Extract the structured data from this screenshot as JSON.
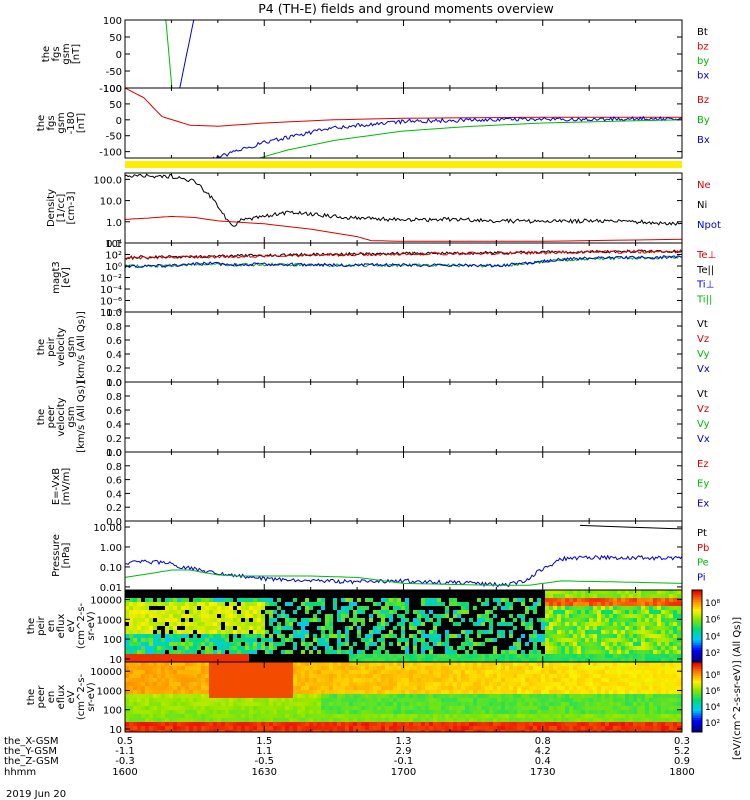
{
  "title": "P4 (TH-E) fields and ground moments overview",
  "date_label": "2019 Jun 20",
  "chart_data": {
    "type": "line",
    "x": {
      "rows": [
        {
          "label": "the_X-GSM",
          "values": [
            "0.5",
            "1.5",
            "1.3",
            "0.8",
            "0.3"
          ]
        },
        {
          "label": "the_Y-GSM",
          "values": [
            "-1.1",
            "1.1",
            "2.9",
            "4.2",
            "5.2"
          ]
        },
        {
          "label": "the_Z-GSM",
          "values": [
            "-0.3",
            "-0.5",
            "-0.1",
            "0.4",
            "0.9"
          ]
        },
        {
          "label": "hhmm",
          "values": [
            "1600",
            "1630",
            "1700",
            "1730",
            "1800"
          ]
        }
      ]
    },
    "panels": [
      {
        "ylabel": [
          "the",
          "fgs",
          "gsm",
          "[nT]"
        ],
        "ticks": [
          "100",
          "50",
          "0",
          "-50",
          "-100"
        ],
        "legend": [
          {
            "name": "Bt",
            "color": "#000000"
          },
          {
            "name": "bz",
            "color": "#dd0000"
          },
          {
            "name": "by",
            "color": "#00bb00"
          },
          {
            "name": "bx",
            "color": "#0000dd"
          }
        ]
      },
      {
        "ylabel": [
          "the",
          "fgs",
          "gsm",
          "-180",
          "[nT]"
        ],
        "ticks": [
          "100",
          "50",
          "0",
          "-50",
          "-100"
        ],
        "legend": [
          {
            "name": "Bz",
            "color": "#dd0000"
          },
          {
            "name": "By",
            "color": "#00bb00"
          },
          {
            "name": "Bx",
            "color": "#0000dd"
          }
        ]
      },
      {
        "ylabel": [
          "Density",
          "[1/cc]",
          "[cm-3]"
        ],
        "ticks": [
          "100.0",
          "10.0",
          "1.0",
          "0.1"
        ],
        "legend": [
          {
            "name": "Ne",
            "color": "#dd0000"
          },
          {
            "name": "Ni",
            "color": "#000000"
          },
          {
            "name": "Npot",
            "color": "#0000dd"
          }
        ]
      },
      {
        "ylabel": [
          "magt3",
          "[eV]"
        ],
        "ticks": [
          "10⁴",
          "10²",
          "10⁰",
          "10⁻²",
          "10⁻⁴",
          "10⁻⁶",
          "10⁻⁸"
        ],
        "legend": [
          {
            "name": "Te⊥",
            "color": "#dd0000"
          },
          {
            "name": "Te||",
            "color": "#000000"
          },
          {
            "name": "Ti⊥",
            "color": "#0000dd"
          },
          {
            "name": "Ti||",
            "color": "#00bb00"
          }
        ]
      },
      {
        "ylabel": [
          "the",
          "peir",
          "velocity",
          "gsm",
          "[km/s (All Qs)]"
        ],
        "ticks": [
          "1.0",
          "0.8",
          "0.6",
          "0.4",
          "0.2",
          "0.0"
        ],
        "legend": [
          {
            "name": "Vt",
            "color": "#000000"
          },
          {
            "name": "Vz",
            "color": "#dd0000"
          },
          {
            "name": "Vy",
            "color": "#00bb00"
          },
          {
            "name": "Vx",
            "color": "#0000dd"
          }
        ]
      },
      {
        "ylabel": [
          "the",
          "peer",
          "velocity",
          "gsm",
          "[km/s (All Qs)]"
        ],
        "ticks": [
          "1.0",
          "0.8",
          "0.6",
          "0.4",
          "0.2",
          "0.0"
        ],
        "legend": [
          {
            "name": "Vt",
            "color": "#000000"
          },
          {
            "name": "Vz",
            "color": "#dd0000"
          },
          {
            "name": "Vy",
            "color": "#00bb00"
          },
          {
            "name": "Vx",
            "color": "#0000dd"
          }
        ]
      },
      {
        "ylabel": [
          "E=-VxB",
          "[mV/m]"
        ],
        "ticks": [
          "1.0",
          "0.8",
          "0.6",
          "0.4",
          "0.2",
          "0.0"
        ],
        "legend": [
          {
            "name": "Ez",
            "color": "#dd0000"
          },
          {
            "name": "Ey",
            "color": "#00bb00"
          },
          {
            "name": "Ex",
            "color": "#0000dd"
          }
        ]
      },
      {
        "ylabel": [
          "Pressure",
          "[nPa]"
        ],
        "ticks": [
          "10.00",
          "1.00",
          "0.10",
          "0.01"
        ],
        "legend": [
          {
            "name": "Pt",
            "color": "#000000"
          },
          {
            "name": "Pb",
            "color": "#dd0000"
          },
          {
            "name": "Pe",
            "color": "#00bb00"
          },
          {
            "name": "Pi",
            "color": "#0000dd"
          }
        ]
      },
      {
        "ylabel": [
          "the",
          "peir",
          "en",
          "eflux",
          "eV",
          "(cm^2-s-",
          "sr-eV)"
        ],
        "ticks": [
          "10000",
          "1000",
          "100",
          "10"
        ]
      },
      {
        "ylabel": [
          "the",
          "peer",
          "en",
          "eflux",
          "eV",
          "(cm^2-s-",
          "sr-eV)"
        ],
        "ticks": [
          "10000",
          "1000",
          "100",
          "10"
        ]
      }
    ],
    "colorbars": [
      {
        "ticks": [
          "10⁸",
          "10⁶",
          "10⁴",
          "10²"
        ]
      },
      {
        "ticks": [
          "10⁸",
          "10⁶",
          "10⁴",
          "10²"
        ]
      }
    ],
    "colorbar_label": "[eV/(cm^2-s-sr-eV)] (All Qs)]",
    "series": [
      {
        "panel": 0,
        "name": "by",
        "color": "#00bb00",
        "values": [
          [
            1608.8,
            100
          ],
          [
            1610.1,
            -100
          ]
        ]
      },
      {
        "panel": 0,
        "name": "bx",
        "color": "#0000dd",
        "values": [
          [
            1611.8,
            -100
          ],
          [
            1614.8,
            100
          ]
        ]
      },
      {
        "panel": 1,
        "name": "Bz",
        "color": "#dd0000",
        "values": [
          [
            1600,
            100
          ],
          [
            1604,
            70
          ],
          [
            1608,
            10
          ],
          [
            1614,
            -17
          ],
          [
            1620,
            -20
          ],
          [
            1630,
            -10
          ],
          [
            1645,
            0
          ],
          [
            1700,
            5
          ],
          [
            1730,
            8
          ],
          [
            1800,
            8
          ]
        ]
      },
      {
        "panel": 1,
        "name": "Bx",
        "color": "#0000dd",
        "values": [
          [
            1619,
            -120
          ],
          [
            1622,
            -110
          ],
          [
            1630,
            -70
          ],
          [
            1645,
            -25
          ],
          [
            1700,
            -5
          ],
          [
            1715,
            0
          ],
          [
            1730,
            2
          ],
          [
            1800,
            4
          ]
        ]
      },
      {
        "panel": 1,
        "name": "By",
        "color": "#00bb00",
        "values": [
          [
            1629,
            -120
          ],
          [
            1635,
            -95
          ],
          [
            1645,
            -65
          ],
          [
            1700,
            -35
          ],
          [
            1715,
            -20
          ],
          [
            1730,
            -10
          ],
          [
            1750,
            -3
          ],
          [
            1800,
            0
          ]
        ]
      },
      {
        "panel": 2,
        "name": "Ni",
        "color": "#000000",
        "values": [
          [
            1600,
            150
          ],
          [
            1610,
            140
          ],
          [
            1615,
            80
          ],
          [
            1618,
            20
          ],
          [
            1621,
            3
          ],
          [
            1622,
            1.2
          ],
          [
            1623,
            0.6
          ],
          [
            1625,
            1.2
          ],
          [
            1630,
            1.8
          ],
          [
            1635,
            2.8
          ],
          [
            1640,
            2.2
          ],
          [
            1650,
            1.5
          ],
          [
            1700,
            1.2
          ],
          [
            1710,
            1.3
          ],
          [
            1720,
            1.1
          ],
          [
            1730,
            1.05
          ],
          [
            1740,
            1.1
          ],
          [
            1750,
            1.0
          ],
          [
            1800,
            0.8
          ]
        ]
      },
      {
        "panel": 2,
        "name": "Ne",
        "color": "#dd0000",
        "values": [
          [
            1600,
            1.3
          ],
          [
            1605,
            1.5
          ],
          [
            1610,
            1.8
          ],
          [
            1615,
            1.6
          ],
          [
            1620,
            1.1
          ],
          [
            1630,
            0.8
          ],
          [
            1640,
            0.45
          ],
          [
            1650,
            0.2
          ],
          [
            1653,
            0.13
          ],
          [
            1700,
            0.12
          ],
          [
            1730,
            0.12
          ],
          [
            1800,
            0.15
          ]
        ]
      },
      {
        "panel": 3,
        "name": "Te||",
        "color": "#000000",
        "values": [
          [
            1600,
            30
          ],
          [
            1620,
            50
          ],
          [
            1640,
            100
          ],
          [
            1700,
            150
          ],
          [
            1720,
            200
          ],
          [
            1740,
            300
          ],
          [
            1800,
            400
          ]
        ]
      },
      {
        "panel": 3,
        "name": "Te⊥",
        "color": "#dd0000",
        "values": [
          [
            1600,
            25
          ],
          [
            1620,
            40
          ],
          [
            1640,
            80
          ],
          [
            1700,
            130
          ],
          [
            1720,
            170
          ],
          [
            1740,
            250
          ],
          [
            1800,
            350
          ]
        ]
      },
      {
        "panel": 3,
        "name": "Ti||",
        "color": "#00bb00",
        "values": [
          [
            1600,
            1.0
          ],
          [
            1610,
            1.2
          ],
          [
            1618,
            2.5
          ],
          [
            1622,
            1.5
          ],
          [
            1630,
            1.8
          ],
          [
            1640,
            1.5
          ],
          [
            1650,
            1.3
          ],
          [
            1700,
            1.4
          ],
          [
            1720,
            1.2
          ],
          [
            1725,
            2.0
          ],
          [
            1733,
            10
          ],
          [
            1740,
            20
          ],
          [
            1800,
            30
          ]
        ]
      },
      {
        "panel": 3,
        "name": "Ti⊥",
        "color": "#0000dd",
        "values": [
          [
            1600,
            0.8
          ],
          [
            1610,
            1.1
          ],
          [
            1618,
            3.0
          ],
          [
            1622,
            1.8
          ],
          [
            1630,
            2.0
          ],
          [
            1640,
            1.7
          ],
          [
            1650,
            1.4
          ],
          [
            1700,
            1.5
          ],
          [
            1720,
            1.2
          ],
          [
            1725,
            2.2
          ],
          [
            1733,
            12
          ],
          [
            1740,
            25
          ],
          [
            1800,
            35
          ]
        ]
      },
      {
        "panel": 7,
        "name": "Pi",
        "color": "#0000dd",
        "values": [
          [
            1600,
            0.15
          ],
          [
            1602,
            0.18
          ],
          [
            1606,
            0.18
          ],
          [
            1609,
            0.16
          ],
          [
            1612,
            0.1
          ],
          [
            1620,
            0.05
          ],
          [
            1630,
            0.025
          ],
          [
            1640,
            0.02
          ],
          [
            1650,
            0.018
          ],
          [
            1700,
            0.02
          ],
          [
            1715,
            0.015
          ],
          [
            1722,
            0.012
          ],
          [
            1726,
            0.02
          ],
          [
            1730,
            0.08
          ],
          [
            1734,
            0.25
          ],
          [
            1740,
            0.3
          ],
          [
            1760,
            0.28
          ],
          [
            1800,
            0.25
          ]
        ]
      },
      {
        "panel": 7,
        "name": "Pe",
        "color": "#00bb00",
        "values": [
          [
            1600,
            0.03
          ],
          [
            1605,
            0.045
          ],
          [
            1610,
            0.07
          ],
          [
            1614,
            0.07
          ],
          [
            1620,
            0.04
          ],
          [
            1625,
            0.035
          ],
          [
            1640,
            0.035
          ],
          [
            1650,
            0.03
          ],
          [
            1700,
            0.015
          ],
          [
            1720,
            0.012
          ],
          [
            1727,
            0.012
          ],
          [
            1734,
            0.02
          ],
          [
            1745,
            0.018
          ],
          [
            1800,
            0.015
          ]
        ]
      },
      {
        "panel": 7,
        "name": "Pt",
        "color": "#000000",
        "values": [
          [
            1738,
            12
          ],
          [
            1760,
            8
          ],
          [
            1780,
            4
          ],
          [
            1800,
            2
          ]
        ]
      }
    ]
  }
}
